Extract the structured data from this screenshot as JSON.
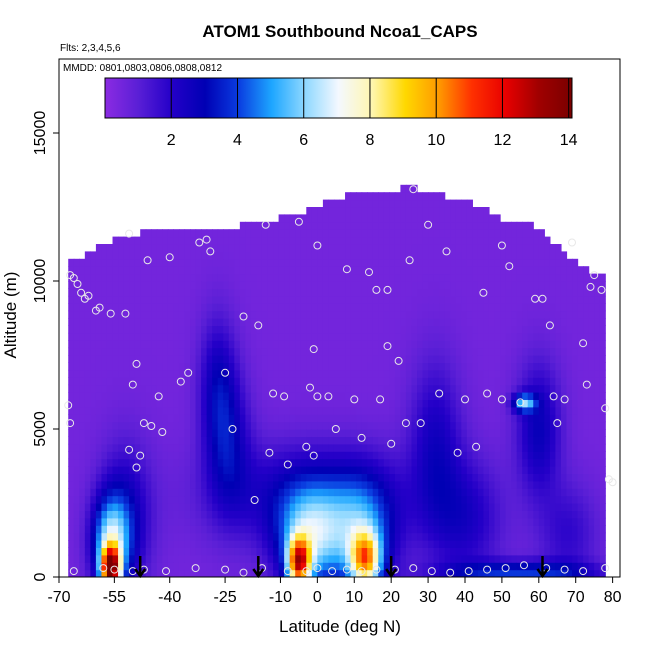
{
  "chart_data": {
    "type": "heatmap",
    "title": "ATOM1 Southbound Ncoa1_CAPS",
    "flights_note": "Flts: 2,3,4,5,6",
    "dates_note": "MMDD: 0801,0803,0806,0808,0812",
    "xlabel": "Latitude (deg N)",
    "ylabel": "Altitude (m)",
    "xlim": [
      -70,
      82
    ],
    "ylim": [
      0,
      17500
    ],
    "x_ticks": [
      -70,
      -55,
      -40,
      -25,
      -10,
      0,
      10,
      20,
      30,
      40,
      50,
      60,
      70,
      80
    ],
    "y_ticks": [
      0,
      5000,
      10000,
      15000
    ],
    "colorbar": {
      "ticks": [
        2,
        4,
        6,
        8,
        10,
        12,
        14
      ],
      "range": [
        0,
        14.1
      ],
      "colors": [
        "#8b2be2",
        "#5a1fd6",
        "#2400c8",
        "#0000b4",
        "#0a3ce0",
        "#1da6ff",
        "#8fd8ff",
        "#f4f8ff",
        "#fff6b0",
        "#ffd800",
        "#ff9a00",
        "#ff3000",
        "#e80000",
        "#a00000",
        "#7a0000"
      ]
    },
    "background_value": 0.5,
    "coverage_top": [
      {
        "lat": -67.5,
        "alt": 10500
      },
      {
        "lat": -60,
        "alt": 11000
      },
      {
        "lat": -55,
        "alt": 11300
      },
      {
        "lat": -45,
        "alt": 11600
      },
      {
        "lat": -30,
        "alt": 11500
      },
      {
        "lat": -20,
        "alt": 11800
      },
      {
        "lat": -10,
        "alt": 12000
      },
      {
        "lat": 0,
        "alt": 12400
      },
      {
        "lat": 10,
        "alt": 12900
      },
      {
        "lat": 20,
        "alt": 12900
      },
      {
        "lat": 25,
        "alt": 13100
      },
      {
        "lat": 30,
        "alt": 12900
      },
      {
        "lat": 40,
        "alt": 12600
      },
      {
        "lat": 50,
        "alt": 12000
      },
      {
        "lat": 60,
        "alt": 11700
      },
      {
        "lat": 70,
        "alt": 10500
      },
      {
        "lat": 78,
        "alt": 10000
      }
    ],
    "features": [
      {
        "lat": -56,
        "alt": 300,
        "dlat": 2.5,
        "dalt": 700,
        "value": 11
      },
      {
        "lat": -56,
        "alt": 1200,
        "dlat": 5,
        "dalt": 1500,
        "value": 5
      },
      {
        "lat": -52,
        "alt": 2000,
        "dlat": 7,
        "dalt": 2400,
        "value": 2.2
      },
      {
        "lat": -5,
        "alt": 500,
        "dlat": 3,
        "dalt": 800,
        "value": 9
      },
      {
        "lat": -2,
        "alt": 1300,
        "dlat": 9,
        "dalt": 1700,
        "value": 5
      },
      {
        "lat": 13,
        "alt": 600,
        "dlat": 4,
        "dalt": 900,
        "value": 7
      },
      {
        "lat": 12,
        "alt": 1500,
        "dlat": 9,
        "dalt": 1900,
        "value": 4
      },
      {
        "lat": -3,
        "alt": 2800,
        "dlat": 25,
        "dalt": 1700,
        "value": 2
      },
      {
        "lat": -27,
        "alt": 6500,
        "dlat": 5,
        "dalt": 2300,
        "value": 2
      },
      {
        "lat": -24,
        "alt": 4500,
        "dlat": 6,
        "dalt": 2300,
        "value": 2
      },
      {
        "lat": 32,
        "alt": 4500,
        "dlat": 7,
        "dalt": 2800,
        "value": 1.9
      },
      {
        "lat": 40,
        "alt": 2000,
        "dlat": 10,
        "dalt": 2000,
        "value": 1.8
      },
      {
        "lat": 60,
        "alt": 5000,
        "dlat": 6,
        "dalt": 2200,
        "value": 2.3
      },
      {
        "lat": 56,
        "alt": 5900,
        "dlat": 3,
        "dalt": 300,
        "value": 4.5
      },
      {
        "lat": 55,
        "alt": 150,
        "dlat": 20,
        "dalt": 400,
        "value": 3.3
      },
      {
        "lat": 68,
        "alt": 1500,
        "dlat": 8,
        "dalt": 1700,
        "value": 1.3
      }
    ],
    "sample_points": [
      [
        -67.5,
        5800
      ],
      [
        -67,
        5200
      ],
      [
        -67,
        10200
      ],
      [
        -66,
        10100
      ],
      [
        -65,
        9900
      ],
      [
        -64,
        9600
      ],
      [
        -63,
        9400
      ],
      [
        -62,
        9500
      ],
      [
        -60,
        9000
      ],
      [
        -59,
        9100
      ],
      [
        -56,
        8900
      ],
      [
        -52,
        8900
      ],
      [
        -51,
        11600
      ],
      [
        -50,
        6500
      ],
      [
        -49,
        7200
      ],
      [
        -46,
        10700
      ],
      [
        -43,
        6100
      ],
      [
        -42,
        4900
      ],
      [
        -40,
        10800
      ],
      [
        -37,
        6600
      ],
      [
        -35,
        6900
      ],
      [
        -32,
        11300
      ],
      [
        -30,
        11400
      ],
      [
        -29,
        11000
      ],
      [
        -25,
        6900
      ],
      [
        -23,
        5000
      ],
      [
        -20,
        8800
      ],
      [
        -16,
        8500
      ],
      [
        -14,
        11900
      ],
      [
        -12,
        6200
      ],
      [
        -8,
        3800
      ],
      [
        -5,
        12000
      ],
      [
        -2,
        6400
      ],
      [
        0,
        6100
      ],
      [
        0,
        11200
      ],
      [
        -1,
        7700
      ],
      [
        -1,
        4100
      ],
      [
        3,
        6100
      ],
      [
        5,
        5000
      ],
      [
        8,
        10400
      ],
      [
        10,
        6000
      ],
      [
        12,
        4700
      ],
      [
        14,
        10300
      ],
      [
        16,
        9700
      ],
      [
        17,
        6000
      ],
      [
        19,
        9700
      ],
      [
        19,
        7800
      ],
      [
        22,
        7300
      ],
      [
        25,
        10700
      ],
      [
        26,
        13100
      ],
      [
        28,
        5200
      ],
      [
        30,
        11900
      ],
      [
        33,
        6200
      ],
      [
        35,
        11000
      ],
      [
        40,
        6000
      ],
      [
        43,
        4400
      ],
      [
        45,
        9600
      ],
      [
        46,
        6200
      ],
      [
        50,
        6000
      ],
      [
        50,
        11200
      ],
      [
        52,
        10500
      ],
      [
        55,
        5900
      ],
      [
        59,
        9400
      ],
      [
        61,
        9400
      ],
      [
        63,
        8500
      ],
      [
        64,
        6100
      ],
      [
        65,
        5200
      ],
      [
        67,
        6000
      ],
      [
        69,
        11300
      ],
      [
        72,
        7900
      ],
      [
        73,
        6500
      ],
      [
        74,
        9800
      ],
      [
        75,
        10200
      ],
      [
        77,
        9700
      ],
      [
        78,
        5700
      ],
      [
        79,
        3300
      ],
      [
        80,
        3200
      ],
      [
        -66,
        200
      ],
      [
        -58,
        300
      ],
      [
        -55,
        250
      ],
      [
        -50,
        200
      ],
      [
        -47,
        250
      ],
      [
        -41,
        200
      ],
      [
        -33,
        300
      ],
      [
        -25,
        250
      ],
      [
        -20,
        150
      ],
      [
        -15,
        300
      ],
      [
        -8,
        200
      ],
      [
        -3,
        200
      ],
      [
        0,
        300
      ],
      [
        4,
        200
      ],
      [
        8,
        250
      ],
      [
        12,
        200
      ],
      [
        16,
        250
      ],
      [
        21,
        250
      ],
      [
        26,
        300
      ],
      [
        31,
        200
      ],
      [
        36,
        150
      ],
      [
        41,
        200
      ],
      [
        46,
        250
      ],
      [
        51,
        300
      ],
      [
        56,
        400
      ],
      [
        62,
        300
      ],
      [
        67,
        250
      ],
      [
        72,
        200
      ],
      [
        78,
        300
      ],
      [
        -51,
        4300
      ],
      [
        -49,
        3700
      ],
      [
        -48,
        4100
      ],
      [
        -47,
        5200
      ],
      [
        -45,
        5100
      ],
      [
        -17,
        2600
      ],
      [
        -13,
        4200
      ],
      [
        -9,
        6100
      ],
      [
        -3,
        4400
      ],
      [
        20,
        4500
      ],
      [
        24,
        5200
      ],
      [
        38,
        4200
      ]
    ],
    "arrow_lats": [
      -48,
      -16,
      20,
      61
    ]
  }
}
